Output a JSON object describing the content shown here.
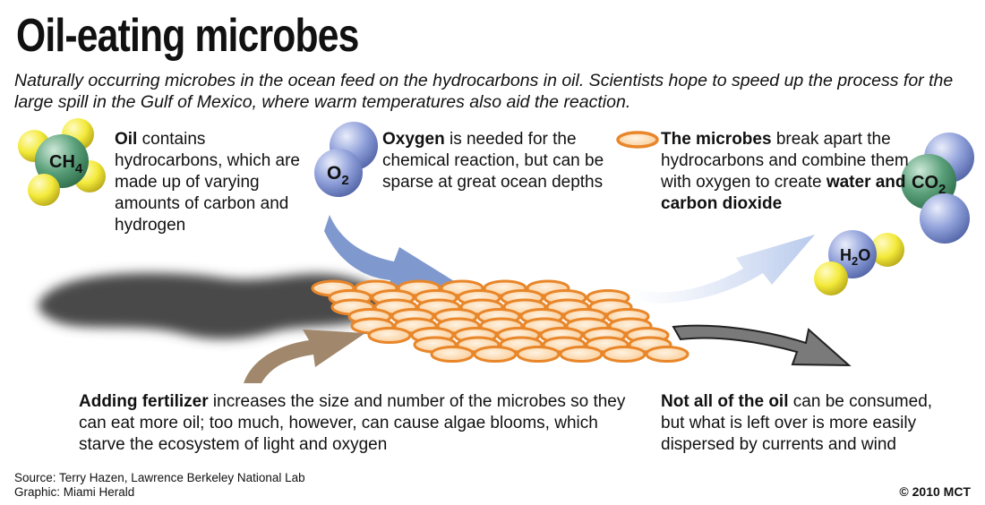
{
  "title": "Oil-eating microbes",
  "subtitle": "Naturally occurring microbes in the ocean feed on the hydrocarbons in oil. Scientists hope to speed up the process for the large spill in the Gulf of Mexico, where warm temperatures also aid the reaction.",
  "oil": {
    "bold": "Oil",
    "text": " contains hydrocarbons, which are made up of varying amounts of carbon and hydrogen",
    "molecule": "CH",
    "molecule_sub": "4"
  },
  "oxygen": {
    "bold": "Oxygen",
    "text": " is needed for the chemical reaction, but can be sparse at great ocean depths",
    "molecule": "O",
    "molecule_sub": "2"
  },
  "microbes": {
    "bold": "The microbes",
    "text": " break apart the hydrocarbons and combine them with oxygen to create ",
    "bold_end": "water and carbon dioxide"
  },
  "co2": {
    "molecule": "CO",
    "molecule_sub": "2"
  },
  "h2o": {
    "molecule_a": "H",
    "molecule_sub": "2",
    "molecule_b": "O"
  },
  "fertilizer": {
    "bold": "Adding fertilizer",
    "text": " increases the size and number of the microbes so they can eat more oil; too much, however, can cause algae blooms, which starve the ecosystem of light and oxygen"
  },
  "leftover": {
    "bold": "Not all of the oil",
    "text": " can be consumed, but what is left over is more easily dispersed by currents and wind"
  },
  "footer": {
    "source": "Source: Terry Hazen, Lawrence Berkeley National Lab",
    "graphic": "Graphic: Miami Herald",
    "copyright": "© 2010 MCT"
  },
  "colors": {
    "carbon": "#5aa07a",
    "hydrogen": "#f3ea3a",
    "oxygen": "#8e9fd9",
    "microbe_fill": "#fbd5a8",
    "microbe_stroke": "#e8862a",
    "oil_shadow": "#4a4a4a",
    "arrow_oxygen": "#7f99cf",
    "arrow_fert": "#a1876b",
    "arrow_out": "#c3d2ee",
    "arrow_left": "#7a7a7a"
  }
}
